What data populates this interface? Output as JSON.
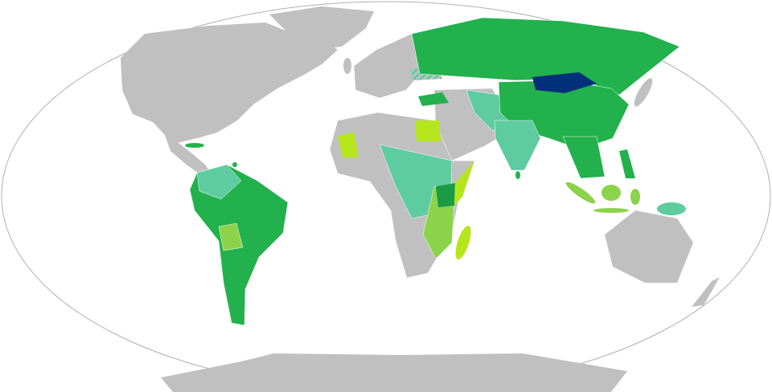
{
  "map": {
    "projection": "robinson",
    "colors": {
      "ocean": "#ffffff",
      "outline": "#b0b0b0",
      "no_data": "#c0c0c0",
      "border": "#ffffff",
      "highlight": "#00307a",
      "green": "#22b14c",
      "dark_green": "#1a9c45",
      "teal": "#5ecba1",
      "light_green": "#8bd34a",
      "lime": "#b5e61d",
      "hatched_base": "#c0c0c0",
      "hatched_stripe": "#5ecba1"
    }
  }
}
